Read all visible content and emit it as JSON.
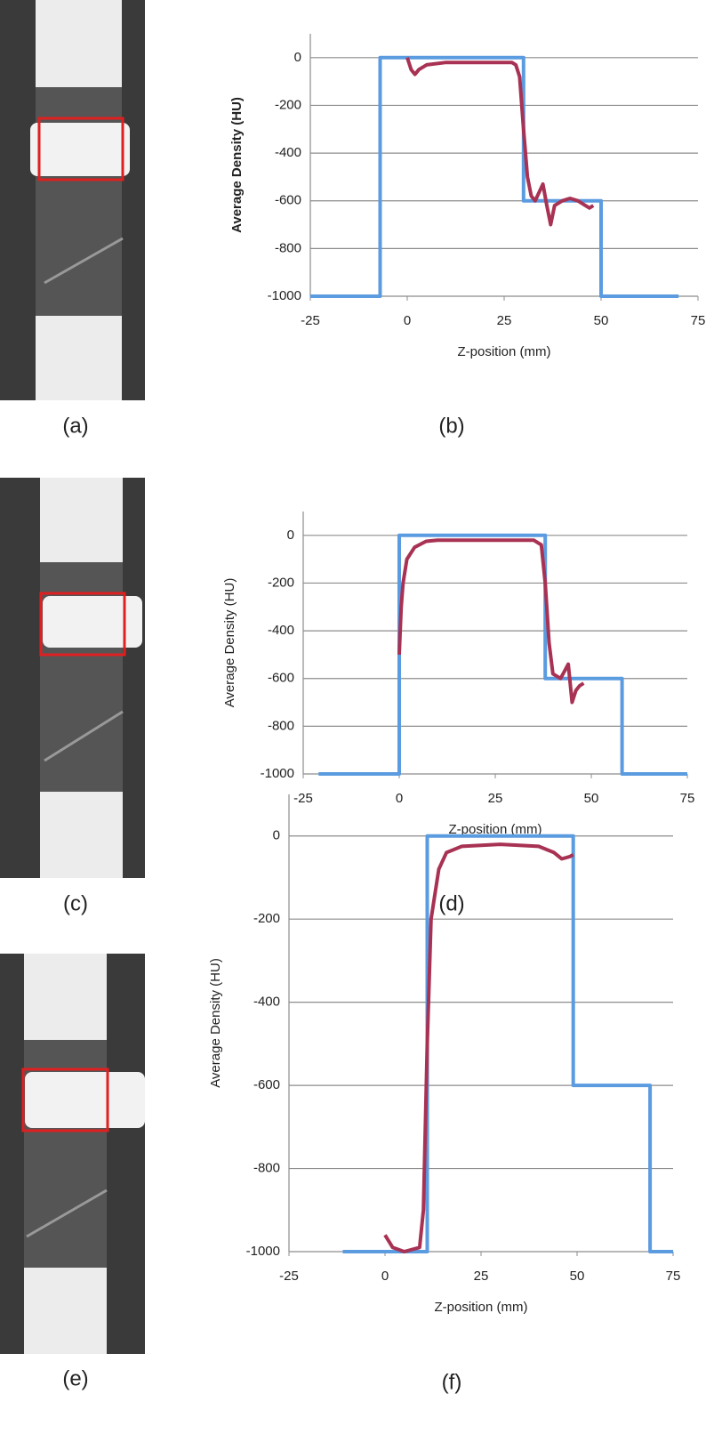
{
  "panel_labels": [
    "(a)",
    "(b)",
    "(c)",
    "(d)",
    "(e)",
    "(f)"
  ],
  "chart_data": [
    {
      "type": "line",
      "xlabel": "Z-position (mm)",
      "ylabel": "Average Density (HU)",
      "ylabel_bold": true,
      "xlim": [
        -25,
        75
      ],
      "xticks": [
        -25,
        0,
        25,
        50,
        75
      ],
      "ylim": [
        -1000,
        100
      ],
      "yticks": [
        -1000,
        -800,
        -600,
        -400,
        -200,
        0
      ],
      "grid": true,
      "series": [
        {
          "color": "#5b9be0",
          "x": [
            -25,
            -7,
            -7,
            30,
            30,
            50,
            50,
            70
          ],
          "values": [
            -1000,
            -1000,
            0,
            0,
            -600,
            -600,
            -1000,
            -1000
          ]
        },
        {
          "color": "#a83253",
          "x": [
            0,
            1,
            2,
            3,
            5,
            10,
            20,
            27,
            28,
            29,
            30,
            31,
            32,
            33,
            35,
            36,
            37,
            38,
            40,
            42,
            44,
            45,
            47,
            48
          ],
          "values": [
            0,
            -50,
            -70,
            -50,
            -30,
            -20,
            -20,
            -20,
            -30,
            -80,
            -300,
            -500,
            -580,
            -600,
            -530,
            -620,
            -700,
            -620,
            -600,
            -590,
            -600,
            -610,
            -630,
            -620
          ]
        }
      ]
    },
    {
      "type": "line",
      "xlabel": "Z-position (mm)",
      "ylabel": "Average Density (HU)",
      "xlim": [
        -25,
        75
      ],
      "xticks": [
        -25,
        0,
        25,
        50,
        75
      ],
      "ylim": [
        -1000,
        100
      ],
      "yticks": [
        -1000,
        -800,
        -600,
        -400,
        -200,
        0
      ],
      "grid": true,
      "series": [
        {
          "color": "#5b9be0",
          "x": [
            -21,
            0,
            0,
            38,
            38,
            58,
            58,
            75
          ],
          "values": [
            -1000,
            -1000,
            0,
            0,
            -600,
            -600,
            -1000,
            -1000
          ]
        },
        {
          "color": "#a83253",
          "x": [
            0,
            0.5,
            1,
            2,
            4,
            7,
            10,
            35,
            37,
            38,
            39,
            40,
            42,
            43,
            44,
            45,
            46,
            47,
            48
          ],
          "values": [
            -500,
            -300,
            -200,
            -100,
            -50,
            -25,
            -20,
            -20,
            -40,
            -200,
            -450,
            -580,
            -600,
            -570,
            -540,
            -700,
            -650,
            -630,
            -620
          ]
        }
      ]
    },
    {
      "type": "line",
      "xlabel": "Z-position (mm)",
      "ylabel": "Average Density (HU)",
      "xlim": [
        -25,
        75
      ],
      "xticks": [
        -25,
        0,
        25,
        50,
        75
      ],
      "ylim": [
        -1000,
        100
      ],
      "yticks": [
        -1000,
        -800,
        -600,
        -400,
        -200,
        0
      ],
      "grid": true,
      "series": [
        {
          "color": "#5b9be0",
          "x": [
            -11,
            11,
            11,
            49,
            49,
            69,
            69,
            75
          ],
          "values": [
            -1000,
            -1000,
            0,
            0,
            -600,
            -600,
            -1000,
            -1000
          ]
        },
        {
          "color": "#a83253",
          "x": [
            0,
            2,
            5,
            9,
            10,
            11,
            12,
            14,
            16,
            20,
            30,
            40,
            44,
            46,
            48,
            49
          ],
          "values": [
            -960,
            -990,
            -1000,
            -990,
            -900,
            -500,
            -200,
            -80,
            -40,
            -25,
            -20,
            -25,
            -40,
            -55,
            -50,
            -45
          ]
        }
      ]
    }
  ]
}
